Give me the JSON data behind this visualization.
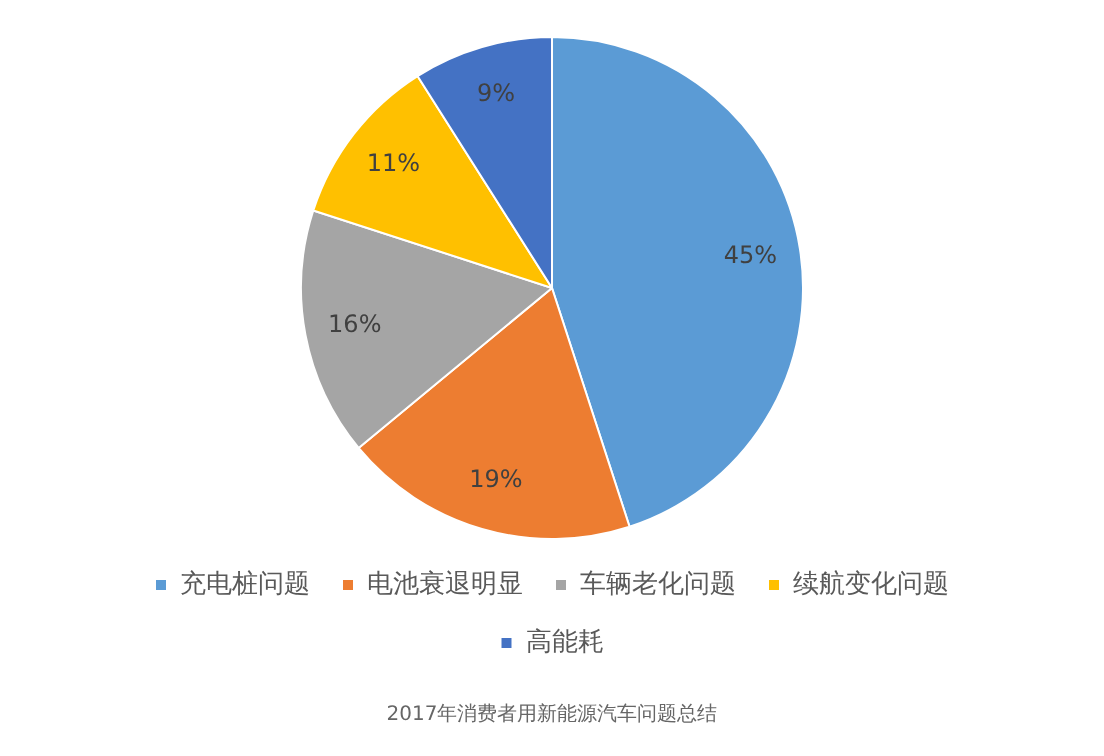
{
  "chart_data": {
    "type": "pie",
    "categories": [
      "充电桩问题",
      "电池衰退明显",
      "车辆老化问题",
      "续航变化问题",
      "高能耗"
    ],
    "values": [
      45,
      19,
      16,
      11,
      9
    ],
    "colors": [
      "#5b9bd5",
      "#ed7d31",
      "#a5a5a5",
      "#ffc000",
      "#4472c4"
    ],
    "value_labels": [
      "45%",
      "19%",
      "16%",
      "11%",
      "9%"
    ],
    "legend": "bottom",
    "annotations": [
      "2017年消费者用新能源汽车问题总结"
    ]
  }
}
